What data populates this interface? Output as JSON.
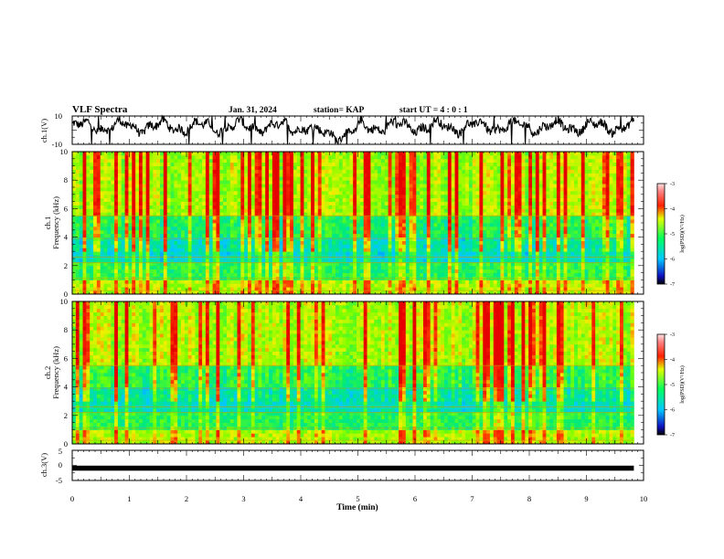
{
  "header": {
    "title": "VLF Spectra",
    "date": "Jan. 31, 2024",
    "station": "station= KAP",
    "start_ut": "start UT =  4 : 0 : 1"
  },
  "chart_data": [
    {
      "type": "line",
      "name": "ch1-voltage",
      "ylabel": "ch.1(V)",
      "ylim": [
        -10,
        10
      ],
      "ytick_labels": [
        "10",
        "-10"
      ],
      "xlim": [
        0,
        10
      ],
      "description_values": "broadband waveform fluctuating mostly between about -5 and 8 V, saturating at times",
      "color": "#000000"
    },
    {
      "type": "heatmap",
      "name": "ch1-spectrogram",
      "ylabel": "ch.1\nFrequency (kHz)",
      "ylabel_lines": [
        "ch.1",
        "Frequency (kHz)"
      ],
      "ylim": [
        0,
        10
      ],
      "ytick_labels": [
        "0",
        "2",
        "4",
        "6",
        "8",
        "10"
      ],
      "xlim": [
        0,
        10
      ],
      "data_end_min": 9.83,
      "colorbar": {
        "label": "log(PSD)(V²/Hz)",
        "range": [
          -7,
          -3
        ],
        "tick_labels": [
          "-3",
          "-4",
          "-5",
          "-6",
          "-7"
        ]
      }
    },
    {
      "type": "heatmap",
      "name": "ch2-spectrogram",
      "ylabel": "ch.2\nFrequency (kHz)",
      "ylabel_lines": [
        "ch.2",
        "Frequency (kHz)"
      ],
      "ylim": [
        0,
        10
      ],
      "ytick_labels": [
        "0",
        "2",
        "4",
        "6",
        "8",
        "10"
      ],
      "xlim": [
        0,
        10
      ],
      "data_end_min": 9.83,
      "colorbar": {
        "label": "log(PSD)(V²/Hz)",
        "range": [
          -7,
          -3
        ],
        "tick_labels": [
          "-3",
          "-4",
          "-5",
          "-6",
          "-7"
        ]
      }
    },
    {
      "type": "line",
      "name": "ch3-voltage",
      "ylabel": "ch.3(V)",
      "ylim": [
        -5,
        5
      ],
      "ytick_labels": [
        "5",
        "0",
        "-5"
      ],
      "level": -1,
      "xlim": [
        0,
        10
      ],
      "xlabel": "Time (min)",
      "xtick_labels": [
        "0",
        "1",
        "2",
        "3",
        "4",
        "5",
        "6",
        "7",
        "8",
        "9",
        "10"
      ],
      "color": "#000000"
    }
  ]
}
